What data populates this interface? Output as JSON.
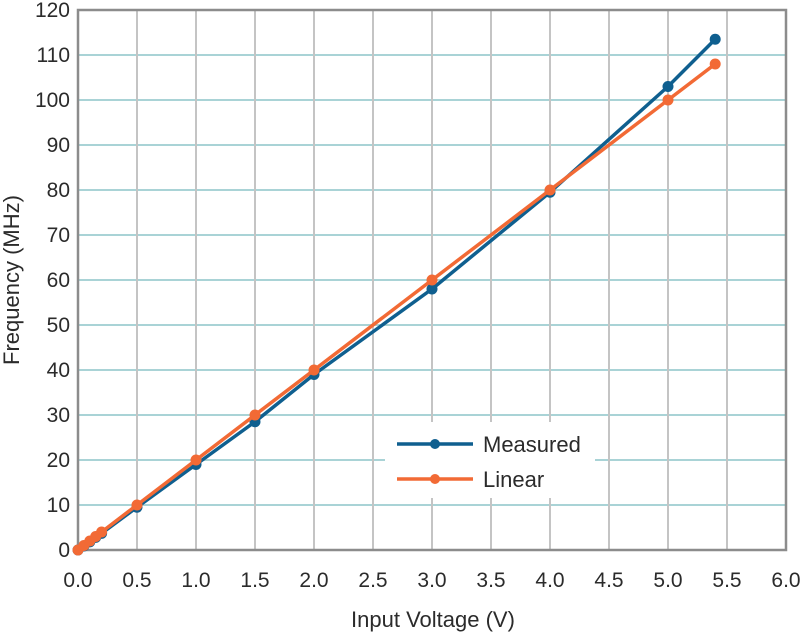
{
  "chart_data": {
    "type": "line",
    "title": "",
    "xlabel": "Input Voltage (V)",
    "ylabel": "Frequency (MHz)",
    "xlim": [
      0,
      6
    ],
    "ylim": [
      0,
      120
    ],
    "xticks": [
      0.0,
      0.5,
      1.0,
      1.5,
      2.0,
      2.5,
      3.0,
      3.5,
      4.0,
      4.5,
      5.0,
      5.5,
      6.0
    ],
    "xtick_labels": [
      "0.0",
      "0.5",
      "1.0",
      "1.5",
      "2.0",
      "2.5",
      "3.0",
      "3.5",
      "4.0",
      "4.5",
      "5.0",
      "5.5",
      "6.0"
    ],
    "yticks": [
      0,
      10,
      20,
      30,
      40,
      50,
      60,
      70,
      80,
      90,
      100,
      110,
      120
    ],
    "ytick_labels": [
      "0",
      "10",
      "20",
      "30",
      "40",
      "50",
      "60",
      "70",
      "80",
      "90",
      "100",
      "110",
      "120"
    ],
    "grid": true,
    "legend_position": "lower right (inside plot, centered-right)",
    "series": [
      {
        "name": "Measured",
        "color": "#0f5f8f",
        "x": [
          0.0,
          0.05,
          0.1,
          0.15,
          0.2,
          0.5,
          1.0,
          1.5,
          2.0,
          3.0,
          4.0,
          5.0,
          5.4
        ],
        "y": [
          0.0,
          0.9,
          1.8,
          2.8,
          3.7,
          9.5,
          19.0,
          28.5,
          39.0,
          58.0,
          79.5,
          103.0,
          113.5
        ]
      },
      {
        "name": "Linear",
        "color": "#f26a35",
        "x": [
          0.0,
          0.05,
          0.1,
          0.15,
          0.2,
          0.5,
          1.0,
          1.5,
          2.0,
          3.0,
          4.0,
          5.0,
          5.4
        ],
        "y": [
          0.0,
          1.0,
          2.0,
          3.0,
          4.0,
          10.0,
          20.0,
          30.0,
          40.0,
          60.0,
          80.0,
          100.0,
          108.0
        ]
      }
    ]
  },
  "style": {
    "frame_color": "#8c8c8c",
    "hgrid_color": "#a9d3d6",
    "vgrid_color": "#c4c4c4",
    "background": "#ffffff"
  }
}
